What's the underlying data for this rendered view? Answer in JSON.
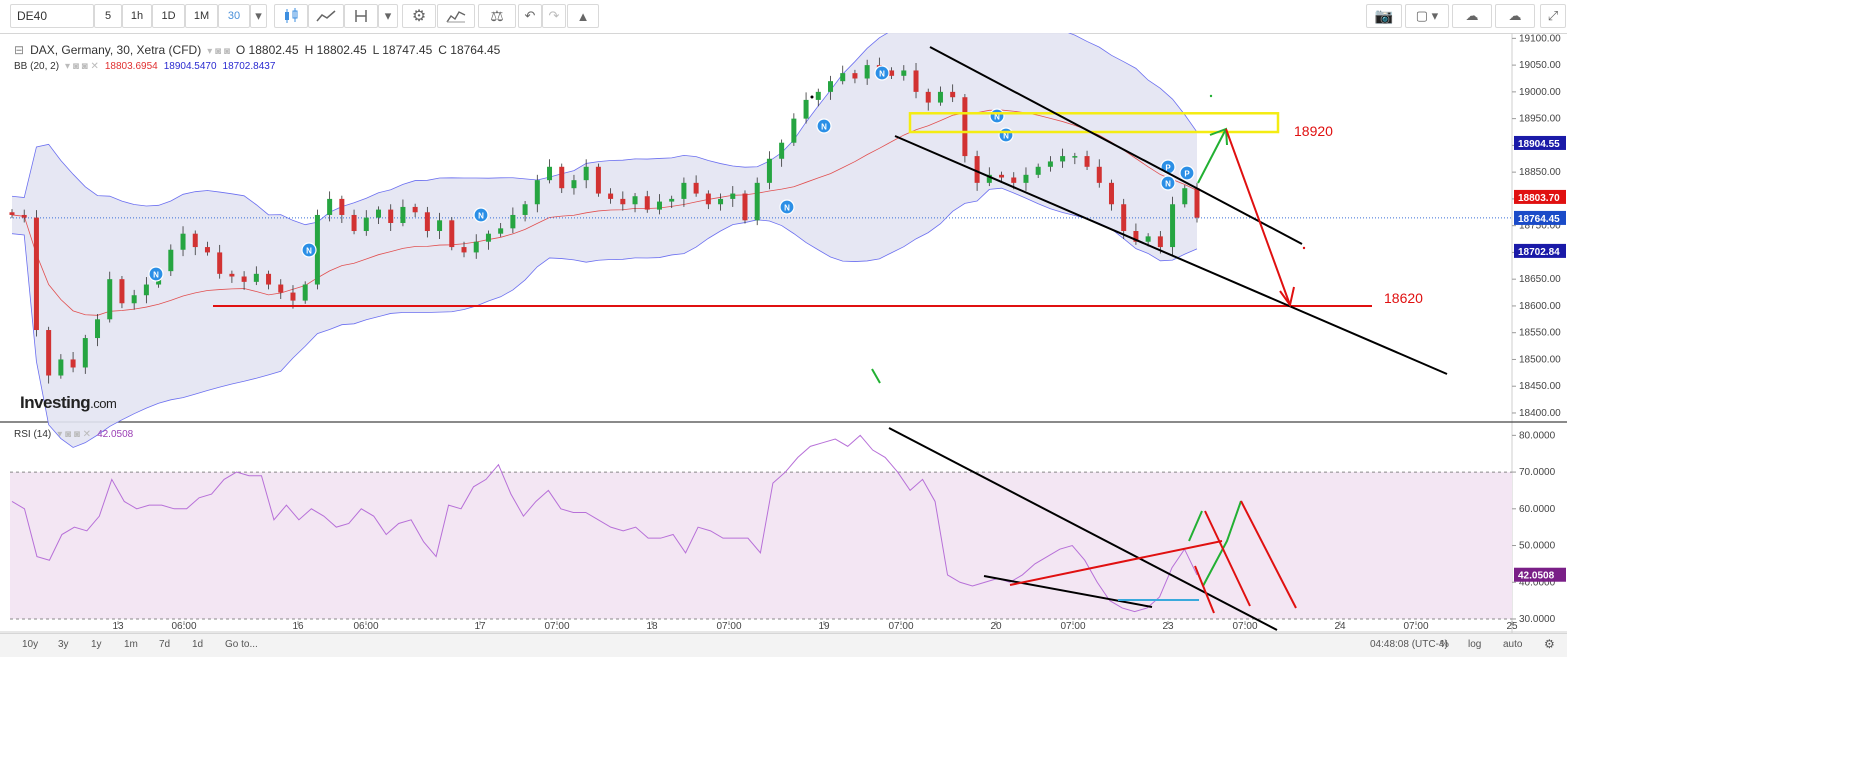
{
  "toolbar": {
    "symbol": "DE40",
    "intervals": [
      "5",
      "1h",
      "1D",
      "1M",
      "30"
    ],
    "active_interval": "30"
  },
  "legend": {
    "title": "DAX, Germany, 30, Xetra (CFD)",
    "open": "O 18802.45",
    "high": "H 18802.45",
    "low": "L 18747.45",
    "close": "C 18764.45",
    "bb_label": "BB (20, 2)",
    "bb_mid": "18803.6954",
    "bb_upper": "18904.5470",
    "bb_lower": "18702.8437",
    "rsi_label": "RSI (14)",
    "rsi_value": "42.0508"
  },
  "logo": {
    "main": "Investing",
    "suffix": ".com"
  },
  "annotations": {
    "resistance": "18920",
    "support": "18620"
  },
  "bottom_bar": {
    "ranges": [
      "10y",
      "3y",
      "1y",
      "1m",
      "7d",
      "1d"
    ],
    "goto": "Go to...",
    "clock": "04:48:08 (UTC-4)",
    "pct": "%",
    "log": "log",
    "auto": "auto"
  },
  "colors": {
    "up": "#26a541",
    "down": "#d23232",
    "bb_fill": "#e3e4f2",
    "bb_band": "#6b6ff0",
    "bb_mid": "#e15050",
    "rsi_line": "#b770d8",
    "rsi_fill": "#f3e6f3"
  },
  "chart_data": [
    {
      "type": "candlestick",
      "title": "DAX, Germany, 30, Xetra (CFD)",
      "x_ticks": [
        "13",
        "06:00",
        "16",
        "06:00",
        "17",
        "07:00",
        "18",
        "07:00",
        "19",
        "07:00",
        "20",
        "07:00",
        "23",
        "07:00",
        "24",
        "07:00",
        "25"
      ],
      "y_ticks": [
        19100,
        19050,
        19000,
        18950,
        18900,
        18850,
        18800,
        18750,
        18700,
        18650,
        18600,
        18550,
        18500,
        18450,
        18400
      ],
      "ylim": [
        18385,
        19110
      ],
      "price_labels": [
        {
          "value": "18904.55",
          "color": "#1a1aa8"
        },
        {
          "value": "18803.70",
          "color": "#e01010"
        },
        {
          "value": "18764.45",
          "color": "#1a4bc8"
        },
        {
          "value": "18702.84",
          "color": "#1a1aa8"
        }
      ],
      "closes": [
        18770,
        18765,
        18555,
        18470,
        18500,
        18485,
        18540,
        18575,
        18650,
        18605,
        18620,
        18640,
        18665,
        18705,
        18735,
        18710,
        18700,
        18660,
        18655,
        18645,
        18660,
        18640,
        18625,
        18610,
        18640,
        18770,
        18800,
        18770,
        18740,
        18765,
        18780,
        18755,
        18785,
        18775,
        18740,
        18760,
        18710,
        18700,
        18720,
        18735,
        18745,
        18770,
        18790,
        18835,
        18860,
        18820,
        18835,
        18860,
        18810,
        18800,
        18790,
        18805,
        18780,
        18795,
        18800,
        18830,
        18810,
        18790,
        18800,
        18810,
        18760,
        18830,
        18875,
        18905,
        18950,
        18985,
        19000,
        19020,
        19035,
        19025,
        19050,
        19040,
        19030,
        19040,
        19000,
        18980,
        19000,
        18990,
        18880,
        18830,
        18845,
        18840,
        18830,
        18845,
        18860,
        18870,
        18880,
        18880,
        18860,
        18830,
        18790,
        18740,
        18720,
        18730,
        18710,
        18790,
        18820,
        18765
      ],
      "highs_lows_note": "wick ranges estimated around each candle",
      "overlays": {
        "bb_period": "BB (20, 2)",
        "bb_middle_last": 18803.6954,
        "bb_upper_last": 18904.547,
        "bb_lower_last": 18702.8437,
        "horizontal_line": 18600,
        "zone": [
          18925,
          18960
        ]
      },
      "annotations": [
        "18920",
        "18620"
      ]
    },
    {
      "type": "line",
      "title": "RSI (14)",
      "y_ticks": [
        80,
        70,
        60,
        50,
        40,
        30
      ],
      "ylim": [
        27,
        82
      ],
      "reference_lines": [
        70,
        30
      ],
      "last_value": "42.0508",
      "values": [
        62,
        60,
        47,
        46,
        53,
        55,
        54,
        58,
        68,
        62,
        60,
        61,
        61,
        60,
        60,
        63,
        64,
        68,
        70,
        69,
        69,
        57,
        61,
        57,
        60,
        58,
        55,
        56,
        60,
        58,
        53,
        56,
        57,
        51,
        47,
        61,
        60,
        66,
        68,
        72,
        64,
        58,
        62,
        65,
        60,
        59,
        59,
        57,
        55,
        54,
        55,
        52,
        52,
        53,
        48,
        55,
        54,
        52,
        52,
        52,
        48,
        67,
        70,
        74,
        77,
        78,
        79,
        77,
        80,
        76,
        74,
        70,
        65,
        68,
        62,
        42,
        40,
        39,
        40,
        41,
        40,
        42,
        45,
        47,
        49,
        50,
        46,
        40,
        35,
        33,
        32,
        33,
        36,
        44,
        49,
        42
      ]
    }
  ]
}
